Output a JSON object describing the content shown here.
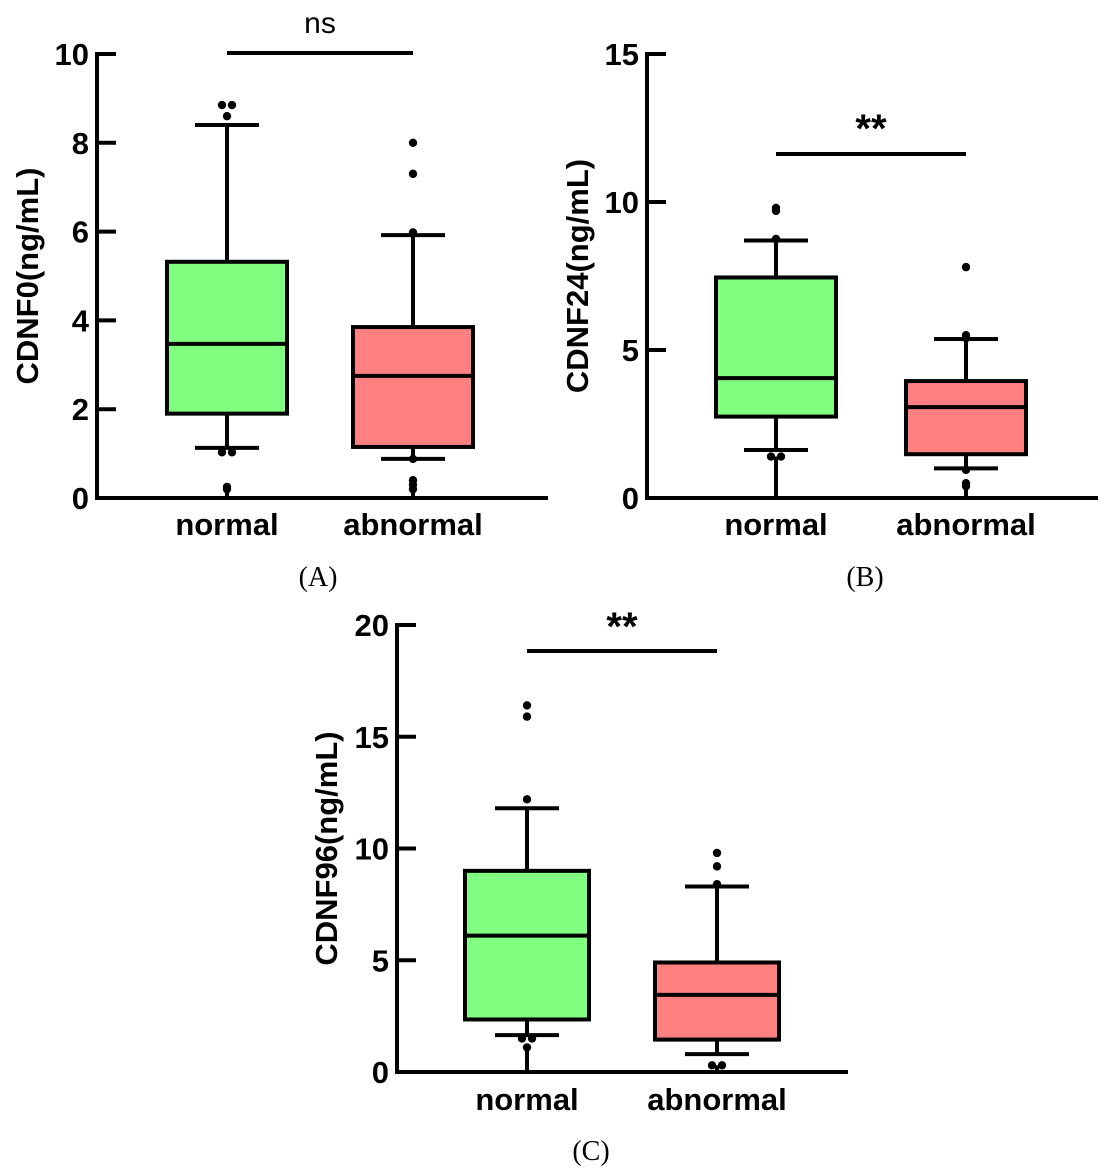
{
  "colors": {
    "normal": "#80FF80",
    "abnormal": "#FF8080",
    "stroke": "#000000"
  },
  "chart_data": [
    {
      "type": "box",
      "panel": "(A)",
      "ylabel": "CDNF0(ng/mL)",
      "ylim": [
        0,
        10
      ],
      "yticks": [
        0,
        2,
        4,
        6,
        8,
        10
      ],
      "categories": [
        "normal",
        "abnormal"
      ],
      "significance": "ns",
      "boxes": [
        {
          "name": "normal",
          "whisker_low": 1.13,
          "q1": 1.9,
          "median": 3.47,
          "q3": 5.32,
          "whisker_high": 8.4,
          "outliers": [
            8.85,
            8.85,
            8.6,
            1.03,
            1.03,
            0.25,
            0.2
          ]
        },
        {
          "name": "abnormal",
          "whisker_low": 0.88,
          "q1": 1.15,
          "median": 2.75,
          "q3": 3.85,
          "whisker_high": 5.92,
          "outliers": [
            8.0,
            7.3,
            5.98,
            0.88,
            0.4,
            0.3,
            0.2
          ]
        }
      ]
    },
    {
      "type": "box",
      "panel": "(B)",
      "ylabel": "CDNF24(ng/mL)",
      "ylim": [
        0,
        15
      ],
      "yticks": [
        0,
        5,
        10,
        15
      ],
      "categories": [
        "normal",
        "abnormal"
      ],
      "significance": "**",
      "boxes": [
        {
          "name": "normal",
          "whisker_low": 1.62,
          "q1": 2.75,
          "median": 4.05,
          "q3": 7.45,
          "whisker_high": 8.7,
          "outliers": [
            9.8,
            9.7,
            8.75,
            1.4,
            1.4
          ]
        },
        {
          "name": "abnormal",
          "whisker_low": 1.0,
          "q1": 1.48,
          "median": 3.07,
          "q3": 3.95,
          "whisker_high": 5.37,
          "outliers": [
            7.8,
            5.5,
            5.4,
            0.95,
            0.5,
            0.4
          ]
        }
      ]
    },
    {
      "type": "box",
      "panel": "(C)",
      "ylabel": "CDNF96(ng/mL)",
      "ylim": [
        0,
        20
      ],
      "yticks": [
        0,
        5,
        10,
        15,
        20
      ],
      "categories": [
        "normal",
        "abnormal"
      ],
      "significance": "**",
      "boxes": [
        {
          "name": "normal",
          "whisker_low": 1.65,
          "q1": 2.35,
          "median": 6.1,
          "q3": 9.0,
          "whisker_high": 11.8,
          "outliers": [
            16.4,
            15.9,
            12.2,
            1.5,
            1.5,
            1.1
          ]
        },
        {
          "name": "abnormal",
          "whisker_low": 0.8,
          "q1": 1.45,
          "median": 3.45,
          "q3": 4.9,
          "whisker_high": 8.3,
          "outliers": [
            9.8,
            9.2,
            8.4,
            0.3,
            0.3
          ]
        }
      ]
    }
  ]
}
